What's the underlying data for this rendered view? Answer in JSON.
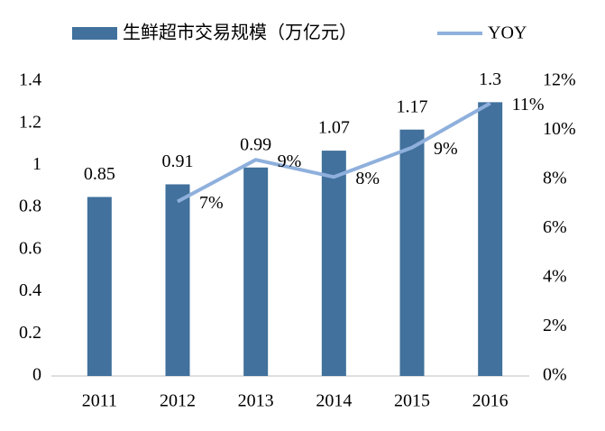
{
  "chart_data": {
    "type": "bar-line",
    "categories": [
      "2011",
      "2012",
      "2013",
      "2014",
      "2015",
      "2016"
    ],
    "series": [
      {
        "name": "生鲜超市交易规模（万亿元）",
        "type": "bar",
        "color": "#41719c",
        "values": [
          0.85,
          0.91,
          0.99,
          1.07,
          1.17,
          1.3
        ]
      },
      {
        "name": "YOY",
        "type": "line",
        "axis": "y2",
        "color": "#8fb0dc",
        "values": [
          null,
          7.1,
          8.8,
          8.1,
          9.3,
          11.1
        ],
        "value_labels": [
          null,
          "7%",
          "9%",
          "8%",
          "9%",
          "11%"
        ]
      }
    ],
    "ylim": [
      0,
      1.4
    ],
    "yticks": [
      0,
      0.2,
      0.4,
      0.6,
      0.8,
      1,
      1.2,
      1.4
    ],
    "y2lim": [
      0,
      12
    ],
    "y2ticks": [
      {
        "value": 0,
        "label": "0%"
      },
      {
        "value": 2,
        "label": "2%"
      },
      {
        "value": 4,
        "label": "4%"
      },
      {
        "value": 6,
        "label": "6%"
      },
      {
        "value": 8,
        "label": "8%"
      },
      {
        "value": 10,
        "label": "10%"
      },
      {
        "value": 12,
        "label": "12%"
      }
    ],
    "legend": "top"
  }
}
